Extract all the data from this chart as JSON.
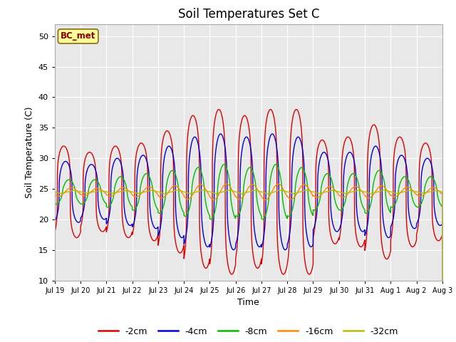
{
  "title": "Soil Temperatures Set C",
  "xlabel": "Time",
  "ylabel": "Soil Temperature (C)",
  "annotation": "BC_met",
  "ylim": [
    10,
    52
  ],
  "xlim": [
    0,
    15
  ],
  "xtick_labels": [
    "Jul 19",
    "Jul 20",
    "Jul 21",
    "Jul 22",
    "Jul 23",
    "Jul 24",
    "Jul 25",
    "Jul 26",
    "Jul 27",
    "Jul 28",
    "Jul 29",
    "Jul 30",
    "Jul 31",
    "Aug 1",
    "Aug 2",
    "Aug 3"
  ],
  "legend_labels": [
    "-2cm",
    "-4cm",
    "-8cm",
    "-16cm",
    "-32cm"
  ],
  "legend_colors": [
    "#dd0000",
    "#0000dd",
    "#00bb00",
    "#ff8800",
    "#bbbb00"
  ],
  "line_colors": [
    "#dd0000",
    "#0000dd",
    "#00bb00",
    "#ff8800",
    "#bbbb00"
  ],
  "background_color": "#e8e8e8",
  "title_fontsize": 12,
  "axis_fontsize": 9,
  "grid_color": "#ffffff",
  "mean_base": 24.5,
  "amp_2cm": [
    7.5,
    6.5,
    7.5,
    8.0,
    10.0,
    12.5,
    13.5,
    12.5,
    13.5,
    13.5,
    8.5,
    9.0,
    11.0,
    9.0,
    8.0,
    7.5
  ],
  "amp_4cm": [
    5.0,
    4.5,
    5.5,
    6.0,
    7.5,
    9.0,
    9.5,
    9.0,
    9.5,
    9.0,
    6.5,
    6.5,
    7.5,
    6.0,
    5.5,
    5.0
  ],
  "amp_8cm": [
    2.0,
    2.0,
    2.5,
    3.0,
    3.5,
    4.0,
    4.5,
    4.0,
    4.5,
    4.0,
    3.0,
    3.0,
    3.5,
    2.5,
    2.5,
    2.0
  ],
  "amp_16cm": [
    0.7,
    0.6,
    0.7,
    0.8,
    1.0,
    1.2,
    1.3,
    1.2,
    1.3,
    1.2,
    0.9,
    0.9,
    1.0,
    0.8,
    0.7,
    0.6
  ],
  "amp_32cm": [
    0.25,
    0.2,
    0.2,
    0.25,
    0.3,
    0.3,
    0.3,
    0.3,
    0.3,
    0.3,
    0.25,
    0.25,
    0.3,
    0.25,
    0.2,
    0.2
  ],
  "phase_2cm": 0.35,
  "phase_4cm": 0.42,
  "phase_8cm": 0.55,
  "phase_16cm": 0.65,
  "phase_32cm": 0.75,
  "peak_sharpness": 4.0
}
